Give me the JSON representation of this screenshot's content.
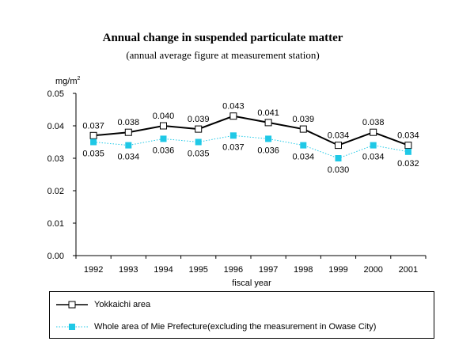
{
  "title": "Annual change in suspended particulate matter",
  "subtitle": "(annual average figure at measurement station)",
  "chart_data": {
    "type": "line",
    "title": "Annual change in suspended particulate matter",
    "subtitle": "(annual average figure at measurement station)",
    "ylabel": "mg/m",
    "ylabel_sup": "2",
    "xlabel": "fiscal year",
    "ylim": [
      0,
      0.05
    ],
    "yticks": [
      "0.00",
      "0.01",
      "0.02",
      "0.03",
      "0.04",
      "0.05"
    ],
    "grid": false,
    "legend_position": "bottom",
    "categories": [
      "1992",
      "1993",
      "1994",
      "1995",
      "1996",
      "1997",
      "1998",
      "1999",
      "2000",
      "2001"
    ],
    "series": [
      {
        "name": "Yokkaichi area",
        "values": [
          0.037,
          0.038,
          0.04,
          0.039,
          0.043,
          0.041,
          0.039,
          0.034,
          0.038,
          0.034
        ],
        "labels": [
          "0.037",
          "0.038",
          "0.040",
          "0.039",
          "0.043",
          "0.041",
          "0.039",
          "0.034",
          "0.038",
          "0.034"
        ],
        "color": "#000000",
        "line_style": "solid",
        "marker": "hollow-square"
      },
      {
        "name": "Whole area of Mie Prefecture(excluding the measurement in Owase City)",
        "values": [
          0.035,
          0.034,
          0.036,
          0.035,
          0.037,
          0.036,
          0.034,
          0.03,
          0.034,
          0.032
        ],
        "labels": [
          "0.035",
          "0.034",
          "0.036",
          "0.035",
          "0.037",
          "0.036",
          "0.034",
          "0.030",
          "0.034",
          "0.032"
        ],
        "color": "#1fc8e6",
        "line_style": "dotted",
        "marker": "filled-square"
      }
    ]
  }
}
